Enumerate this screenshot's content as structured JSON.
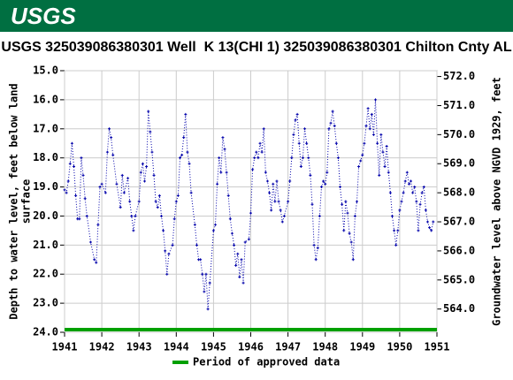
{
  "header": {
    "logo": "USGS"
  },
  "chart_data": {
    "type": "line",
    "title": "USGS 325039086380301 Well  K 13(CHI 1) 325039086380301 Chilton Cnty AL",
    "ylabel_lines": [
      "Depth to water level, feet below land",
      "surface"
    ],
    "y2label": "Groundwater level above NGVD 1929, feet",
    "xlim": [
      1941,
      1951
    ],
    "xticks": [
      1941,
      1942,
      1943,
      1944,
      1945,
      1946,
      1947,
      1948,
      1949,
      1950,
      1951
    ],
    "ylim": [
      15,
      24
    ],
    "y_inverted": true,
    "yticks": [
      {
        "value": 15,
        "label": "15.0"
      },
      {
        "value": 16,
        "label": "16.0"
      },
      {
        "value": 17,
        "label": "17.0"
      },
      {
        "value": 18,
        "label": "18.0"
      },
      {
        "value": 19,
        "label": "19.0"
      },
      {
        "value": 20,
        "label": "20.0"
      },
      {
        "value": 21,
        "label": "21.0"
      },
      {
        "value": 22,
        "label": "22.0"
      },
      {
        "value": 23,
        "label": "23.0"
      },
      {
        "value": 24,
        "label": "24.0"
      }
    ],
    "y2lim": [
      563.2,
      572.2
    ],
    "y2ticks": [
      {
        "value": 564,
        "label": "564.0"
      },
      {
        "value": 565,
        "label": "565.0"
      },
      {
        "value": 566,
        "label": "566.0"
      },
      {
        "value": 567,
        "label": "567.0"
      },
      {
        "value": 568,
        "label": "568.0"
      },
      {
        "value": 569,
        "label": "569.0"
      },
      {
        "value": 570,
        "label": "570.0"
      },
      {
        "value": 571,
        "label": "571.0"
      },
      {
        "value": 572,
        "label": "572.0"
      }
    ],
    "grid": true,
    "series": [
      {
        "color": "#0000aa",
        "x": [
          1941.0,
          1941.05,
          1941.1,
          1941.15,
          1941.2,
          1941.25,
          1941.3,
          1941.35,
          1941.4,
          1941.45,
          1941.5,
          1941.55,
          1941.6,
          1941.7,
          1941.8,
          1941.85,
          1941.9,
          1941.95,
          1942.0,
          1942.1,
          1942.15,
          1942.2,
          1942.25,
          1942.3,
          1942.4,
          1942.5,
          1942.55,
          1942.6,
          1942.7,
          1942.75,
          1942.8,
          1942.85,
          1942.9,
          1943.0,
          1943.05,
          1943.1,
          1943.15,
          1943.2,
          1943.25,
          1943.3,
          1943.35,
          1943.4,
          1943.45,
          1943.5,
          1943.55,
          1943.6,
          1943.65,
          1943.7,
          1943.75,
          1943.8,
          1943.9,
          1943.95,
          1944.0,
          1944.05,
          1944.1,
          1944.15,
          1944.2,
          1944.25,
          1944.3,
          1944.35,
          1944.4,
          1944.5,
          1944.55,
          1944.6,
          1944.65,
          1944.7,
          1944.75,
          1944.8,
          1944.85,
          1944.9,
          1945.0,
          1945.05,
          1945.1,
          1945.15,
          1945.2,
          1945.25,
          1945.3,
          1945.35,
          1945.4,
          1945.45,
          1945.5,
          1945.55,
          1945.6,
          1945.65,
          1945.7,
          1945.75,
          1945.8,
          1945.85,
          1945.95,
          1946.0,
          1946.05,
          1946.1,
          1946.15,
          1946.2,
          1946.25,
          1946.3,
          1946.35,
          1946.4,
          1946.45,
          1946.5,
          1946.55,
          1946.6,
          1946.65,
          1946.7,
          1946.75,
          1946.8,
          1946.85,
          1946.9,
          1947.0,
          1947.05,
          1947.1,
          1947.15,
          1947.2,
          1947.25,
          1947.3,
          1947.35,
          1947.4,
          1947.45,
          1947.5,
          1947.55,
          1947.6,
          1947.65,
          1947.7,
          1947.75,
          1947.8,
          1947.85,
          1947.9,
          1947.95,
          1948.0,
          1948.05,
          1948.1,
          1948.15,
          1948.2,
          1948.25,
          1948.3,
          1948.35,
          1948.4,
          1948.45,
          1948.5,
          1948.55,
          1948.6,
          1948.65,
          1948.7,
          1948.75,
          1948.8,
          1948.85,
          1948.9,
          1948.95,
          1949.0,
          1949.05,
          1949.1,
          1949.15,
          1949.2,
          1949.25,
          1949.3,
          1949.35,
          1949.4,
          1949.45,
          1949.5,
          1949.55,
          1949.6,
          1949.65,
          1949.7,
          1949.75,
          1949.8,
          1949.85,
          1949.9,
          1949.95,
          1950.0,
          1950.05,
          1950.1,
          1950.15,
          1950.2,
          1950.25,
          1950.3,
          1950.35,
          1950.4,
          1950.45,
          1950.5,
          1950.55,
          1950.6,
          1950.65,
          1950.7,
          1950.75,
          1950.8,
          1950.85,
          1950.9
        ],
        "values": [
          19.1,
          19.2,
          18.8,
          18.2,
          17.5,
          18.3,
          19.3,
          20.1,
          20.1,
          18.0,
          18.6,
          19.4,
          20.0,
          20.9,
          21.5,
          21.6,
          20.3,
          19.0,
          18.9,
          19.2,
          17.8,
          17.0,
          17.3,
          17.9,
          18.9,
          19.7,
          18.6,
          19.2,
          18.7,
          19.5,
          20.0,
          20.5,
          20.0,
          19.5,
          18.5,
          18.2,
          18.8,
          18.3,
          16.4,
          17.1,
          17.8,
          18.6,
          19.5,
          19.7,
          19.3,
          20.0,
          20.5,
          21.2,
          22.0,
          21.3,
          21.0,
          20.1,
          19.5,
          19.3,
          18.0,
          17.9,
          17.3,
          16.5,
          17.8,
          18.2,
          19.2,
          20.3,
          21.0,
          21.5,
          21.5,
          22.0,
          22.6,
          22.0,
          23.2,
          22.3,
          20.5,
          20.3,
          18.9,
          18.0,
          18.5,
          17.3,
          17.7,
          18.5,
          19.3,
          20.1,
          20.6,
          21.0,
          21.7,
          21.3,
          22.1,
          21.5,
          22.3,
          20.9,
          20.8,
          19.9,
          18.4,
          18.0,
          17.8,
          18.0,
          17.5,
          17.8,
          17.0,
          18.5,
          18.8,
          19.2,
          19.8,
          18.9,
          19.5,
          18.8,
          19.5,
          19.8,
          20.2,
          20.0,
          19.5,
          18.8,
          18.0,
          17.2,
          16.7,
          16.5,
          17.5,
          18.3,
          18.0,
          17.0,
          17.5,
          18.0,
          18.6,
          19.6,
          21.0,
          21.5,
          21.1,
          20.0,
          19.0,
          18.8,
          18.9,
          18.5,
          17.0,
          16.8,
          16.4,
          16.9,
          17.5,
          18.0,
          19.0,
          19.6,
          20.5,
          19.5,
          19.9,
          20.6,
          20.9,
          21.5,
          20.0,
          19.5,
          18.3,
          18.1,
          17.9,
          17.5,
          16.9,
          16.3,
          17.0,
          16.5,
          17.2,
          16.0,
          17.5,
          18.6,
          17.2,
          17.8,
          18.3,
          17.6,
          18.5,
          19.2,
          20.0,
          20.5,
          21.0,
          20.5,
          19.8,
          19.5,
          19.2,
          18.8,
          18.5,
          18.9,
          18.8,
          19.2,
          19.0,
          19.5,
          20.5,
          19.6,
          19.2,
          19.0,
          19.8,
          20.2,
          20.4,
          20.5,
          20.2
        ]
      }
    ],
    "approved": {
      "name": "Period of approved data",
      "color": "#00a000",
      "x": [
        1941,
        1951
      ]
    }
  }
}
